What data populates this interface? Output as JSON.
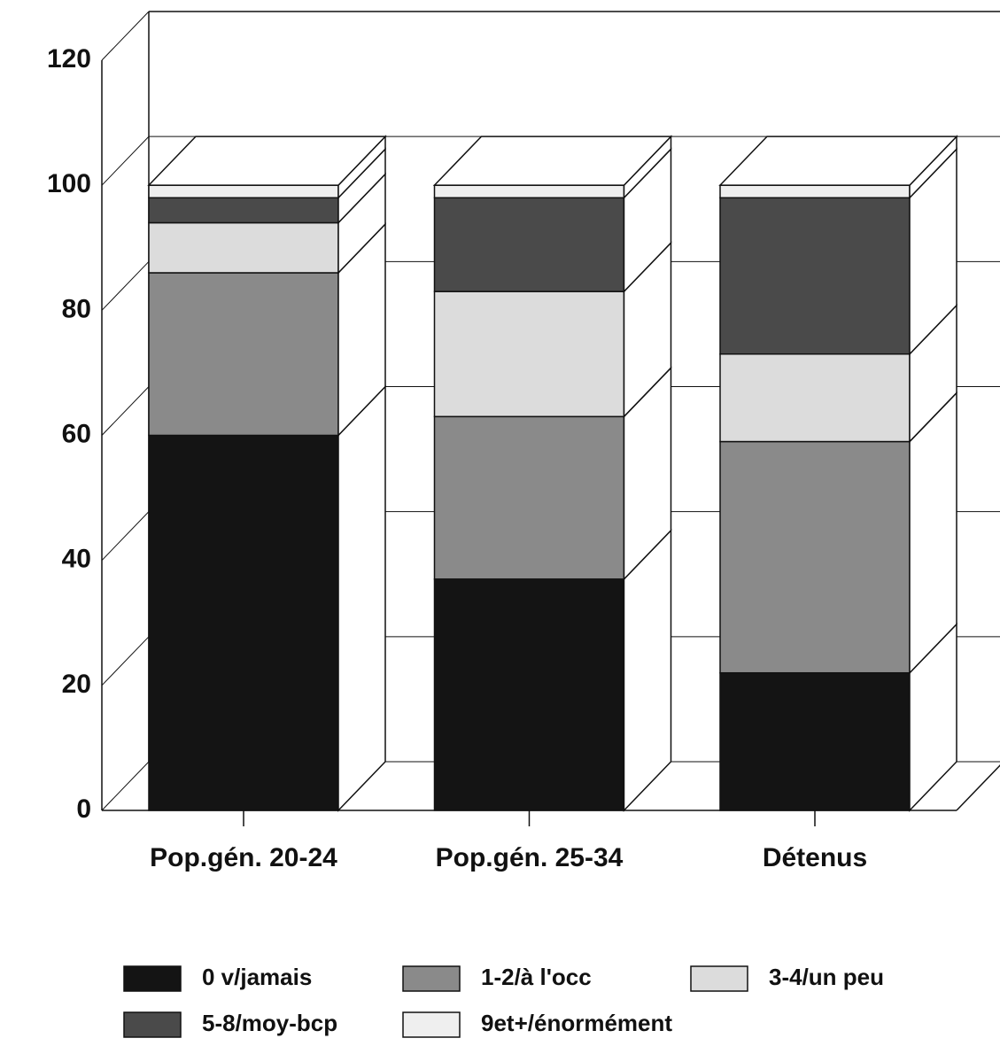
{
  "chart_data": {
    "type": "stacked_bar_3d",
    "categories": [
      "Pop.gén. 20-24",
      "Pop.gén. 25-34",
      "Détenus"
    ],
    "series": [
      {
        "name": "0 v/jamais",
        "color": "#141414",
        "values": [
          60,
          37,
          22
        ]
      },
      {
        "name": "1-2/à l'occ",
        "color": "#8a8a8a",
        "values": [
          26,
          26,
          37
        ]
      },
      {
        "name": "3-4/un peu",
        "color": "#dcdcdc",
        "values": [
          8,
          20,
          14
        ]
      },
      {
        "name": "5-8/moy-bcp",
        "color": "#4a4a4a",
        "values": [
          4,
          15,
          25
        ]
      },
      {
        "name": "9et+/énormément",
        "color": "#efefef",
        "values": [
          2,
          2,
          2
        ]
      }
    ],
    "ylim": [
      0,
      120
    ],
    "yticks": [
      0,
      20,
      40,
      60,
      80,
      100,
      120
    ],
    "grid": true
  }
}
